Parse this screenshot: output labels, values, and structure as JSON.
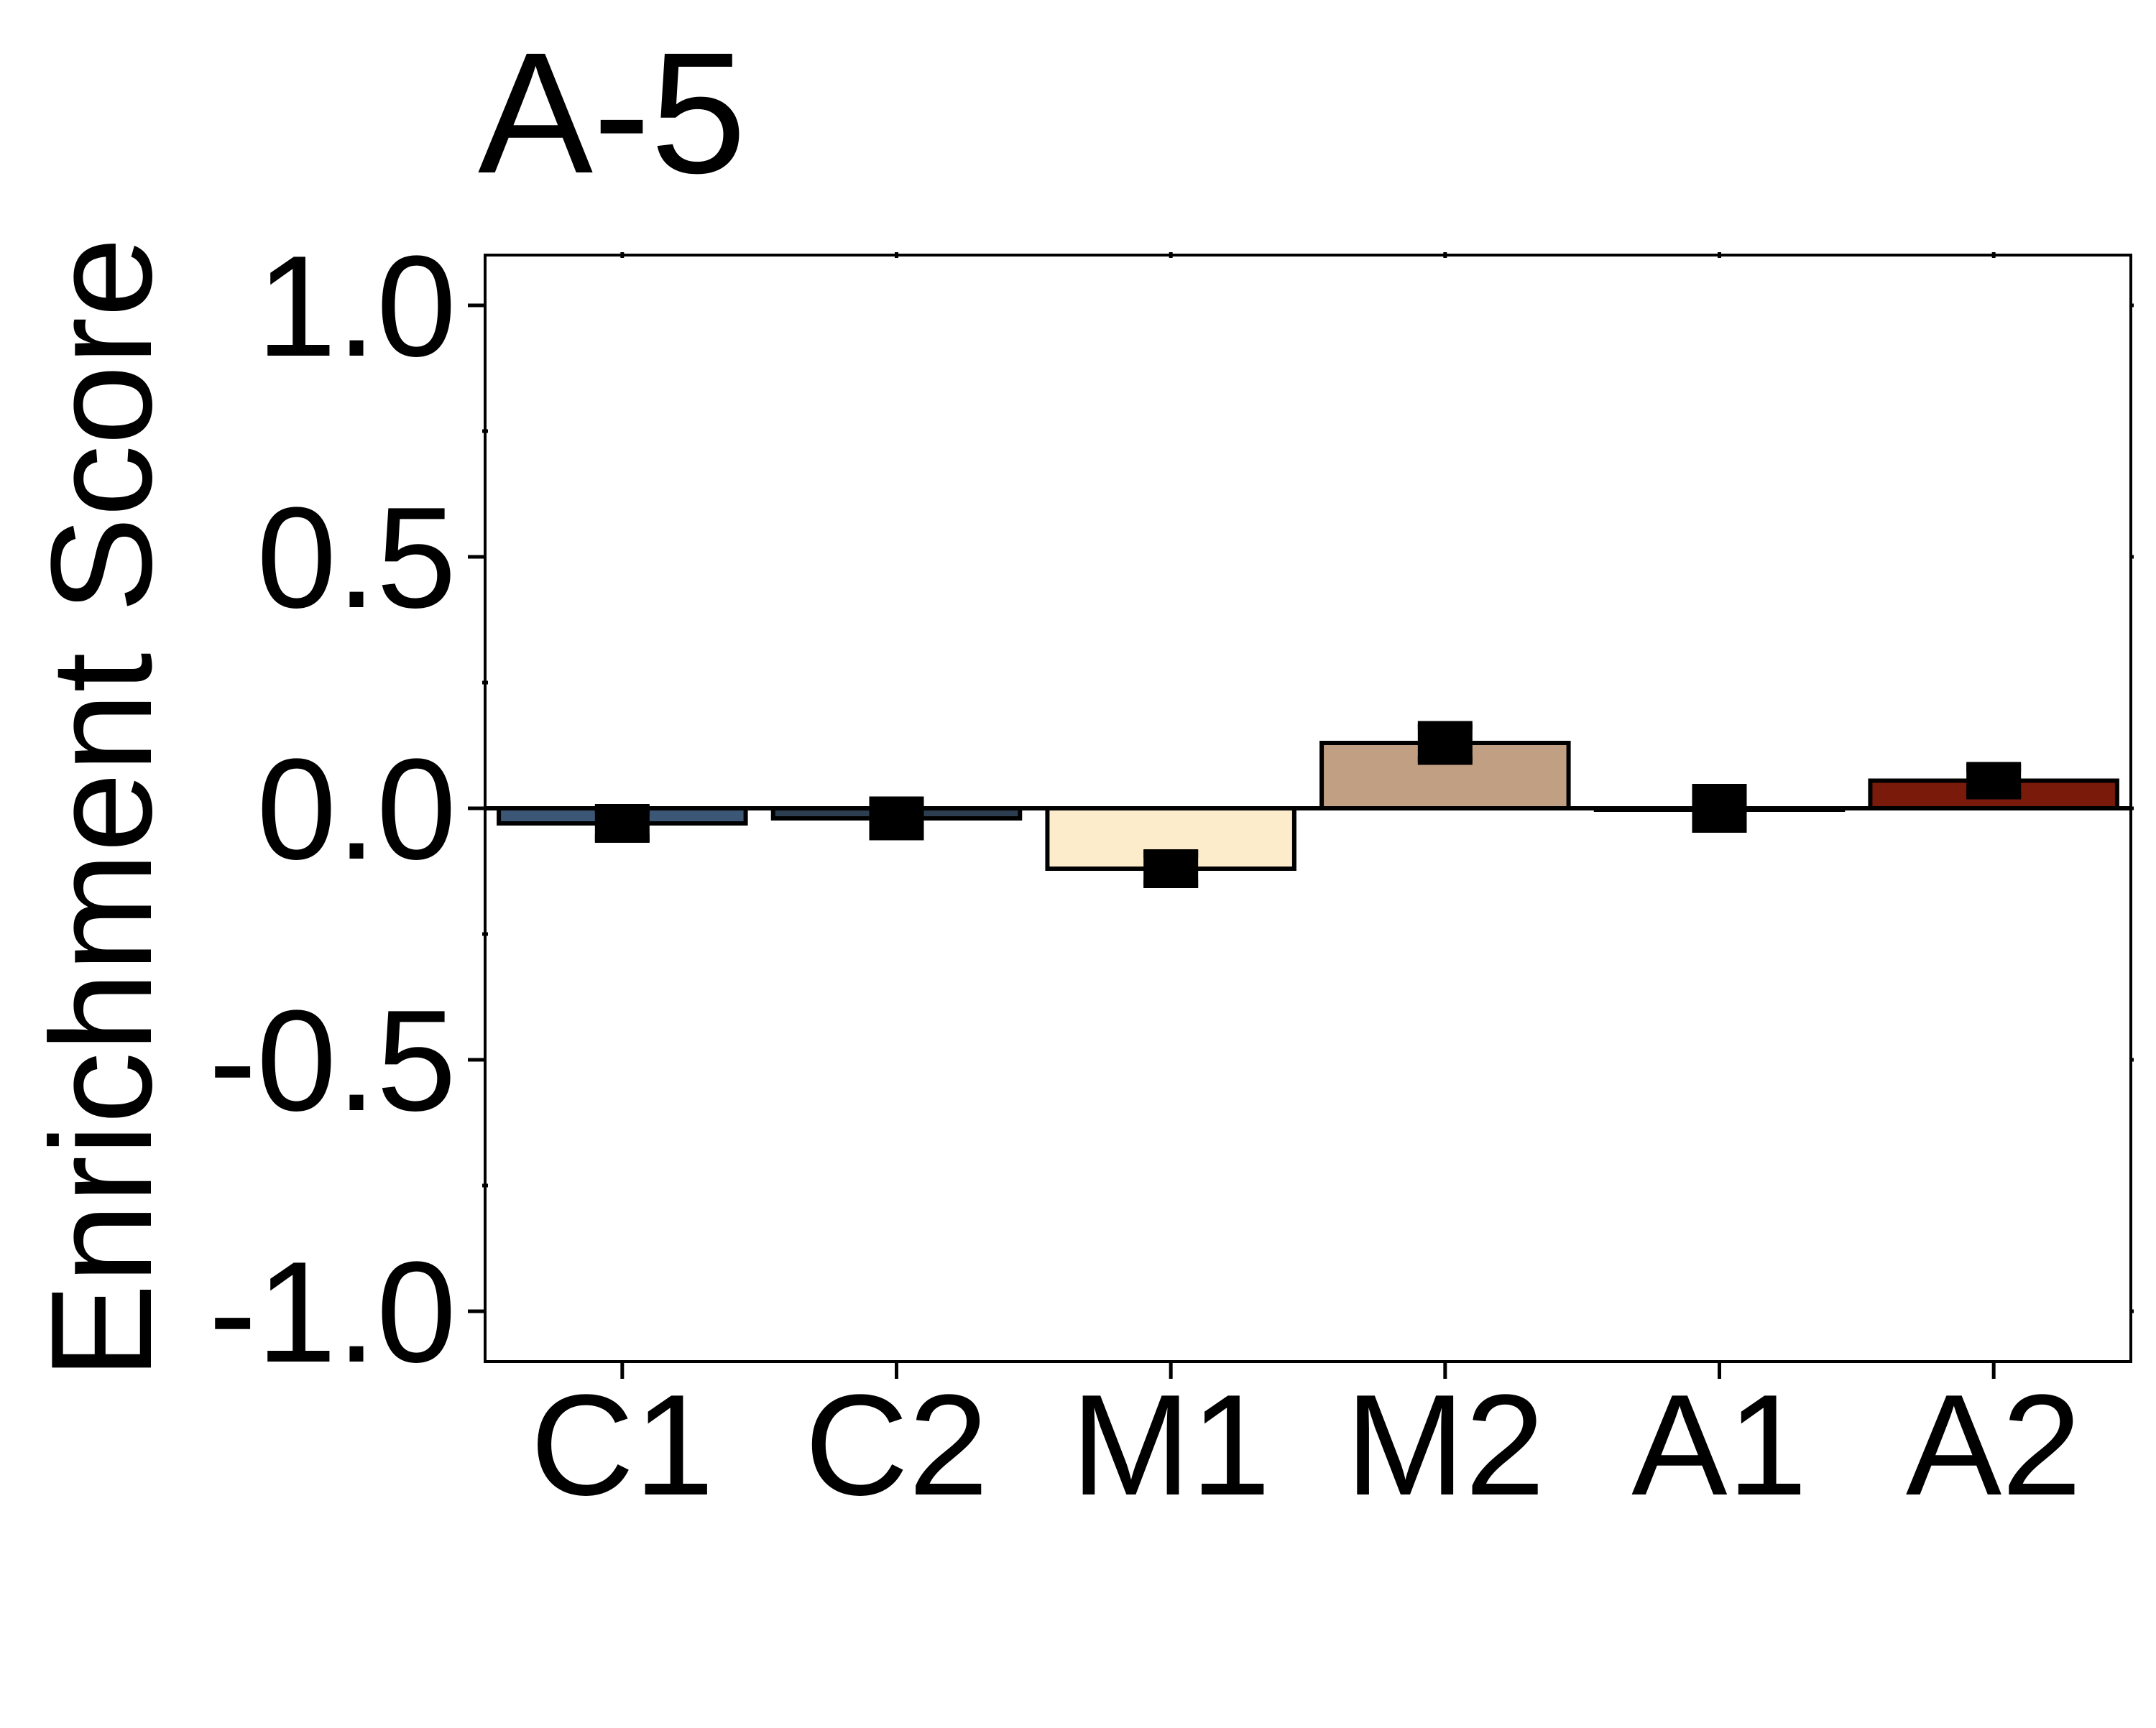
{
  "chart_data": {
    "type": "bar",
    "title": "A-5",
    "xlabel": "",
    "ylabel": "Enrichment Score",
    "categories": [
      "C1",
      "C2",
      "M1",
      "M2",
      "A1",
      "A2"
    ],
    "values": [
      -0.03,
      -0.02,
      -0.12,
      0.13,
      0.0,
      0.055
    ],
    "errors": [
      0.03,
      0.035,
      0.03,
      0.035,
      0.04,
      0.025
    ],
    "bar_colors": [
      "#3c5675",
      "#2c3e50",
      "#fdeccb",
      "#c19f82",
      "#ffffff",
      "#7a1a0a"
    ],
    "ylim": [
      -1.1,
      1.1
    ],
    "yticks": [
      1.0,
      0.5,
      0.0,
      -0.5,
      -1.0
    ],
    "ytick_labels": [
      "1.0",
      "0.5",
      "0.0",
      "-0.5",
      "-1.0"
    ],
    "grid": false,
    "legend": "none",
    "zero_line": true
  }
}
